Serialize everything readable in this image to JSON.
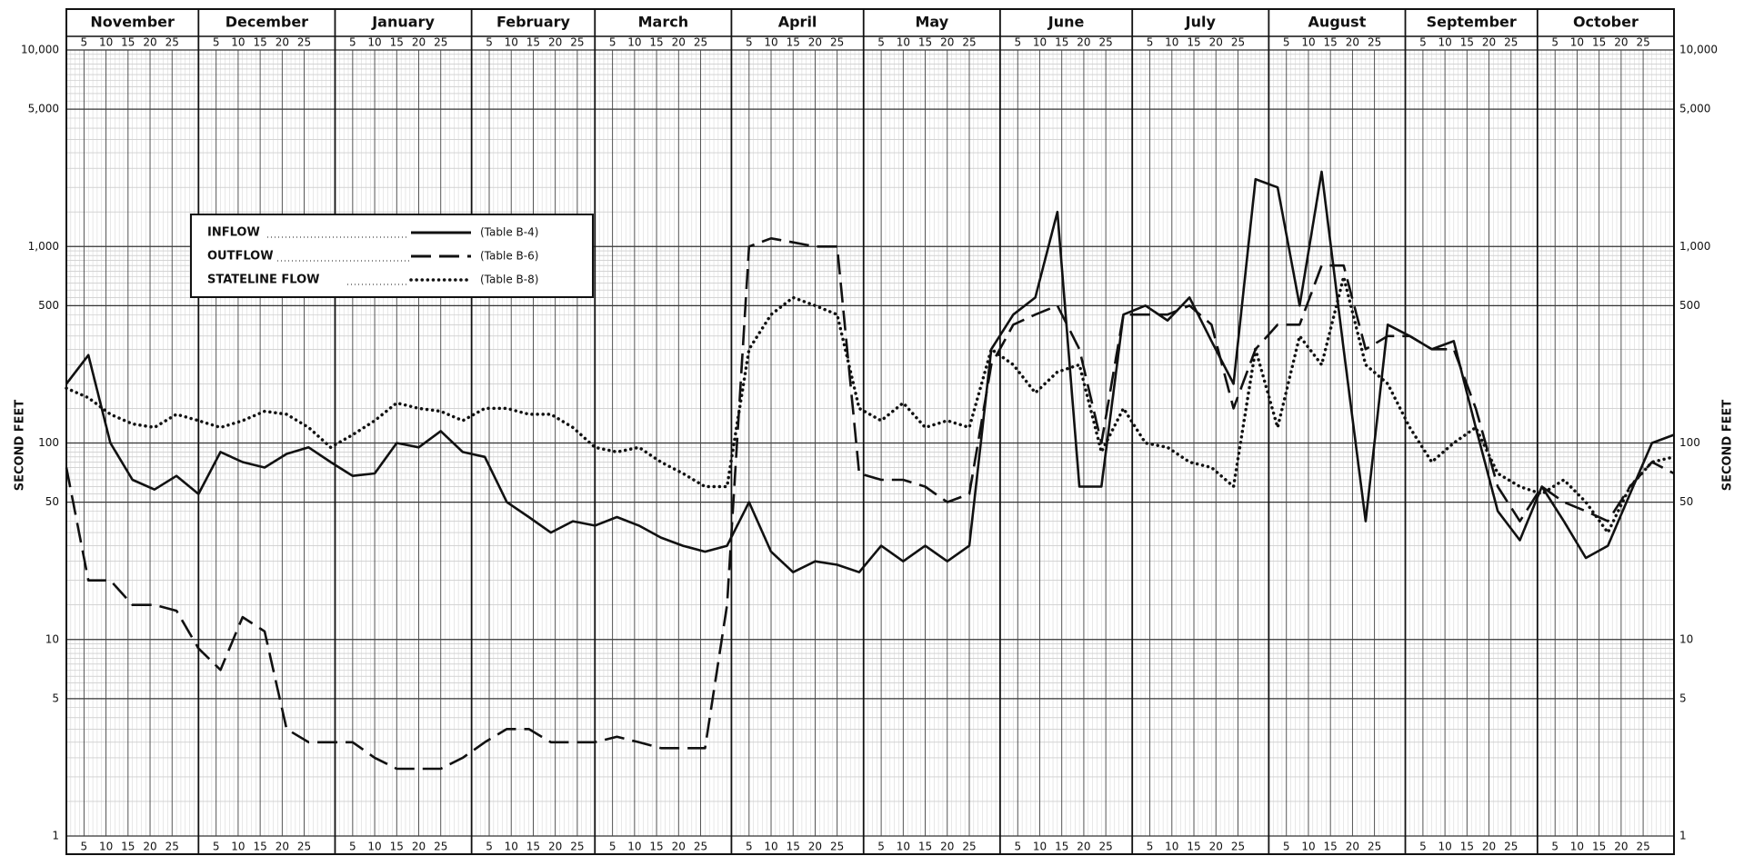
{
  "chart_data": {
    "type": "line",
    "y_label": "SECOND FEET",
    "log_scale": true,
    "grid": true,
    "xlim": [
      0,
      365
    ],
    "ylim": [
      1,
      10000
    ],
    "yticks": [
      1,
      5,
      10,
      50,
      100,
      500,
      {
        "value": 1000,
        "label": "1,000"
      },
      {
        "value": 5000,
        "label": "5,000"
      },
      {
        "value": 10000,
        "label": "10,000"
      }
    ],
    "month_ticks": [
      {
        "value": 0,
        "label": "November"
      },
      {
        "value": 30,
        "label": "December"
      },
      {
        "value": 61,
        "label": "January"
      },
      {
        "value": 92,
        "label": "February"
      },
      {
        "value": 120,
        "label": "March"
      },
      {
        "value": 151,
        "label": "April"
      },
      {
        "value": 181,
        "label": "May"
      },
      {
        "value": 212,
        "label": "June"
      },
      {
        "value": 242,
        "label": "July"
      },
      {
        "value": 273,
        "label": "August"
      },
      {
        "value": 304,
        "label": "September"
      },
      {
        "value": 334,
        "label": "October"
      }
    ],
    "xticks": [
      {
        "value": 4,
        "label": "5"
      },
      {
        "value": 9,
        "label": "10"
      },
      {
        "value": 14,
        "label": "15"
      },
      {
        "value": 19,
        "label": "20"
      },
      {
        "value": 24,
        "label": "25"
      },
      {
        "value": 34,
        "label": "5"
      },
      {
        "value": 39,
        "label": "10"
      },
      {
        "value": 44,
        "label": "15"
      },
      {
        "value": 49,
        "label": "20"
      },
      {
        "value": 54,
        "label": "25"
      },
      {
        "value": 65,
        "label": "5"
      },
      {
        "value": 70,
        "label": "10"
      },
      {
        "value": 75,
        "label": "15"
      },
      {
        "value": 80,
        "label": "20"
      },
      {
        "value": 85,
        "label": "25"
      },
      {
        "value": 96,
        "label": "5"
      },
      {
        "value": 101,
        "label": "10"
      },
      {
        "value": 106,
        "label": "15"
      },
      {
        "value": 111,
        "label": "20"
      },
      {
        "value": 116,
        "label": "25"
      },
      {
        "value": 124,
        "label": "5"
      },
      {
        "value": 129,
        "label": "10"
      },
      {
        "value": 134,
        "label": "15"
      },
      {
        "value": 139,
        "label": "20"
      },
      {
        "value": 144,
        "label": "25"
      },
      {
        "value": 155,
        "label": "5"
      },
      {
        "value": 160,
        "label": "10"
      },
      {
        "value": 165,
        "label": "15"
      },
      {
        "value": 170,
        "label": "20"
      },
      {
        "value": 175,
        "label": "25"
      },
      {
        "value": 185,
        "label": "5"
      },
      {
        "value": 190,
        "label": "10"
      },
      {
        "value": 195,
        "label": "15"
      },
      {
        "value": 200,
        "label": "20"
      },
      {
        "value": 205,
        "label": "25"
      },
      {
        "value": 216,
        "label": "5"
      },
      {
        "value": 221,
        "label": "10"
      },
      {
        "value": 226,
        "label": "15"
      },
      {
        "value": 231,
        "label": "20"
      },
      {
        "value": 236,
        "label": "25"
      },
      {
        "value": 246,
        "label": "5"
      },
      {
        "value": 251,
        "label": "10"
      },
      {
        "value": 256,
        "label": "15"
      },
      {
        "value": 261,
        "label": "20"
      },
      {
        "value": 266,
        "label": "25"
      },
      {
        "value": 277,
        "label": "5"
      },
      {
        "value": 282,
        "label": "10"
      },
      {
        "value": 287,
        "label": "15"
      },
      {
        "value": 292,
        "label": "20"
      },
      {
        "value": 297,
        "label": "25"
      },
      {
        "value": 308,
        "label": "5"
      },
      {
        "value": 313,
        "label": "10"
      },
      {
        "value": 318,
        "label": "15"
      },
      {
        "value": 323,
        "label": "20"
      },
      {
        "value": 328,
        "label": "25"
      },
      {
        "value": 338,
        "label": "5"
      },
      {
        "value": 343,
        "label": "10"
      },
      {
        "value": 348,
        "label": "15"
      },
      {
        "value": 353,
        "label": "20"
      },
      {
        "value": 358,
        "label": "25"
      }
    ],
    "x": [
      0,
      5,
      10,
      15,
      20,
      25,
      30,
      35,
      40,
      45,
      50,
      55,
      60,
      65,
      70,
      75,
      80,
      85,
      90,
      95,
      100,
      105,
      110,
      115,
      120,
      125,
      130,
      135,
      140,
      145,
      150,
      155,
      160,
      165,
      170,
      175,
      180,
      185,
      190,
      195,
      200,
      205,
      210,
      215,
      220,
      225,
      230,
      235,
      240,
      245,
      250,
      255,
      260,
      265,
      270,
      275,
      280,
      285,
      290,
      295,
      300,
      305,
      310,
      315,
      320,
      325,
      330,
      335,
      340,
      345,
      350,
      355,
      360,
      365
    ],
    "series": [
      {
        "name": "INFLOW",
        "source": "(Table B-4)",
        "color": "#111111",
        "line_style": "solid",
        "values": [
          200,
          280,
          100,
          65,
          58,
          68,
          55,
          90,
          80,
          75,
          88,
          95,
          80,
          68,
          70,
          100,
          95,
          115,
          90,
          85,
          50,
          42,
          35,
          40,
          38,
          42,
          38,
          33,
          30,
          28,
          30,
          50,
          28,
          22,
          25,
          24,
          22,
          30,
          25,
          30,
          25,
          30,
          300,
          450,
          550,
          1500,
          60,
          60,
          450,
          500,
          420,
          550,
          330,
          200,
          2200,
          2000,
          500,
          2400,
          300,
          40,
          400,
          350,
          300,
          330,
          120,
          45,
          32,
          60,
          40,
          26,
          30,
          55,
          100,
          110
        ]
      },
      {
        "name": "OUTFLOW",
        "source": "(Table B-6)",
        "color": "#111111",
        "line_style": "dashed",
        "values": [
          75,
          20,
          20,
          15,
          15,
          14,
          9,
          7,
          13,
          11,
          3.5,
          3,
          3,
          3,
          2.5,
          2.2,
          2.2,
          2.2,
          2.5,
          3,
          3.5,
          3.5,
          3,
          3,
          3,
          3.2,
          3,
          2.8,
          2.8,
          2.8,
          15,
          1000,
          1100,
          1050,
          1000,
          1000,
          70,
          65,
          65,
          60,
          50,
          55,
          250,
          400,
          450,
          500,
          300,
          100,
          450,
          450,
          450,
          500,
          400,
          150,
          300,
          400,
          400,
          800,
          800,
          300,
          350,
          350,
          300,
          300,
          150,
          60,
          40,
          60,
          50,
          45,
          40,
          60,
          80,
          70
        ]
      },
      {
        "name": "STATELINE FLOW",
        "source": "(Table B-8)",
        "color": "#111111",
        "line_style": "dotted",
        "values": [
          190,
          170,
          140,
          125,
          120,
          140,
          130,
          120,
          130,
          145,
          140,
          120,
          95,
          110,
          130,
          160,
          150,
          145,
          130,
          150,
          150,
          140,
          140,
          120,
          95,
          90,
          95,
          80,
          70,
          60,
          60,
          300,
          450,
          550,
          500,
          450,
          150,
          130,
          160,
          120,
          130,
          120,
          300,
          250,
          180,
          230,
          250,
          90,
          150,
          100,
          95,
          80,
          75,
          60,
          300,
          120,
          350,
          250,
          700,
          250,
          200,
          120,
          80,
          100,
          120,
          70,
          60,
          55,
          65,
          50,
          35,
          60,
          80,
          85
        ]
      }
    ]
  }
}
